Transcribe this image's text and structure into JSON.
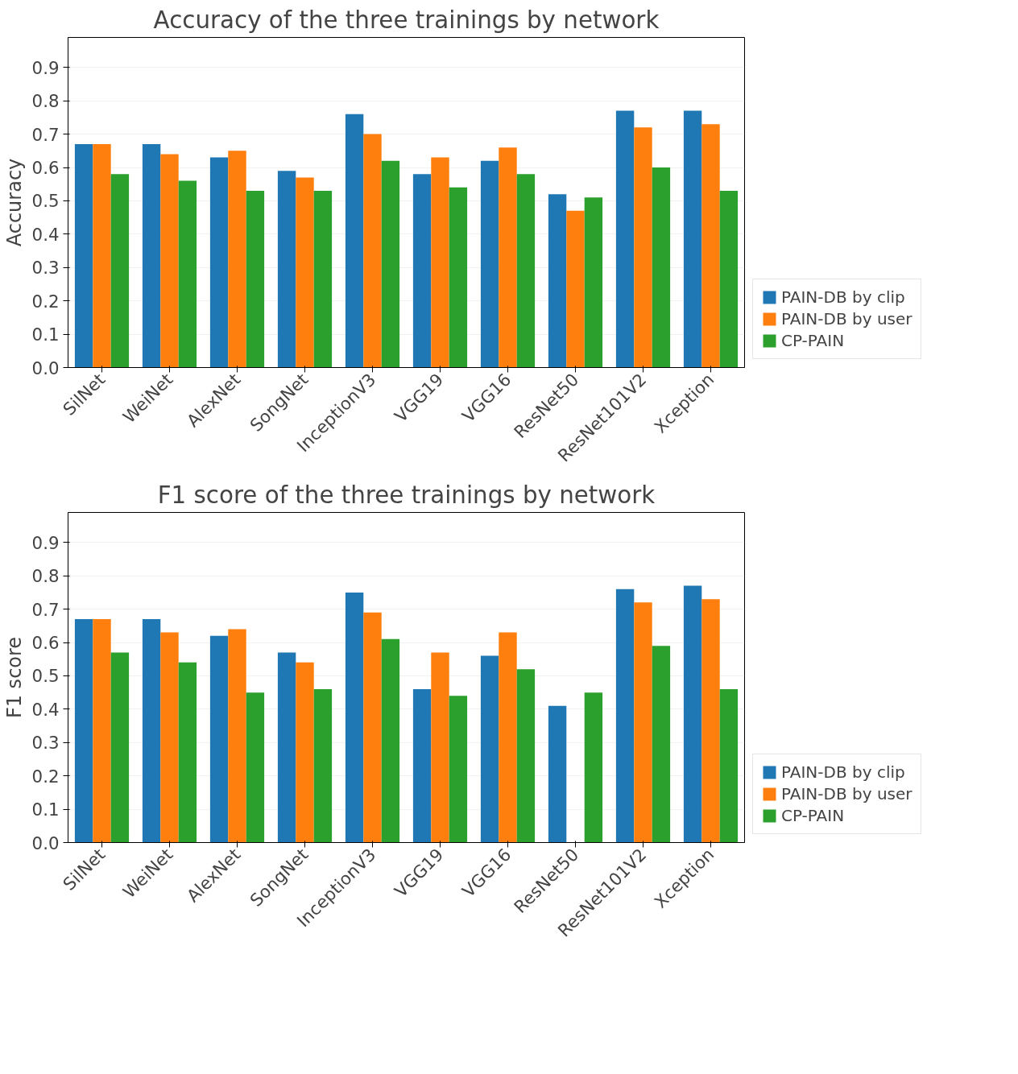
{
  "chart_data": [
    {
      "type": "bar",
      "title": "Accuracy of the three trainings by network",
      "ylabel": "Accuracy",
      "categories": [
        "SilNet",
        "WeiNet",
        "AlexNet",
        "SongNet",
        "InceptionV3",
        "VGG19",
        "VGG16",
        "ResNet50",
        "ResNet101V2",
        "Xception"
      ],
      "series": [
        {
          "name": "PAIN-DB by clip",
          "color": "#1f77b4",
          "values": [
            0.67,
            0.67,
            0.63,
            0.59,
            0.76,
            0.58,
            0.62,
            0.52,
            0.77,
            0.77
          ]
        },
        {
          "name": "PAIN-DB by user",
          "color": "#ff7f0e",
          "values": [
            0.67,
            0.64,
            0.65,
            0.57,
            0.7,
            0.63,
            0.66,
            0.47,
            0.72,
            0.73
          ]
        },
        {
          "name": "CP-PAIN",
          "color": "#2ca02c",
          "values": [
            0.58,
            0.56,
            0.53,
            0.53,
            0.62,
            0.54,
            0.58,
            0.51,
            0.6,
            0.53
          ]
        }
      ],
      "ylim": [
        0,
        0.99
      ],
      "yticks": [
        {
          "value": 0,
          "label": "0.0"
        },
        {
          "value": 0.1,
          "label": "0.1"
        },
        {
          "value": 0.2,
          "label": "0.2"
        },
        {
          "value": 0.3,
          "label": "0.3"
        },
        {
          "value": 0.4,
          "label": "0.4"
        },
        {
          "value": 0.5,
          "label": "0.5"
        },
        {
          "value": 0.6,
          "label": "0.6"
        },
        {
          "value": 0.7,
          "label": "0.7"
        },
        {
          "value": 0.8,
          "label": "0.8"
        },
        {
          "value": 0.9,
          "label": "0.9"
        }
      ],
      "grid": "y",
      "legend": "bottom right"
    },
    {
      "type": "bar",
      "title": "F1 score of the three trainings by network",
      "ylabel": "F1 score",
      "categories": [
        "SilNet",
        "WeiNet",
        "AlexNet",
        "SongNet",
        "InceptionV3",
        "VGG19",
        "VGG16",
        "ResNet50",
        "ResNet101V2",
        "Xception"
      ],
      "series": [
        {
          "name": "PAIN-DB by clip",
          "color": "#1f77b4",
          "values": [
            0.67,
            0.67,
            0.62,
            0.57,
            0.75,
            0.46,
            0.56,
            0.41,
            0.76,
            0.77
          ]
        },
        {
          "name": "PAIN-DB by user",
          "color": "#ff7f0e",
          "values": [
            0.67,
            0.63,
            0.64,
            0.54,
            0.69,
            0.57,
            0.63,
            null,
            0.72,
            0.73
          ]
        },
        {
          "name": "CP-PAIN",
          "color": "#2ca02c",
          "values": [
            0.57,
            0.54,
            0.45,
            0.46,
            0.61,
            0.44,
            0.52,
            0.45,
            0.59,
            0.46
          ]
        }
      ],
      "ylim": [
        0,
        0.99
      ],
      "yticks": [
        {
          "value": 0,
          "label": "0.0"
        },
        {
          "value": 0.1,
          "label": "0.1"
        },
        {
          "value": 0.2,
          "label": "0.2"
        },
        {
          "value": 0.3,
          "label": "0.3"
        },
        {
          "value": 0.4,
          "label": "0.4"
        },
        {
          "value": 0.5,
          "label": "0.5"
        },
        {
          "value": 0.6,
          "label": "0.6"
        },
        {
          "value": 0.7,
          "label": "0.7"
        },
        {
          "value": 0.8,
          "label": "0.8"
        },
        {
          "value": 0.9,
          "label": "0.9"
        }
      ],
      "grid": "y",
      "legend": "bottom right"
    }
  ]
}
